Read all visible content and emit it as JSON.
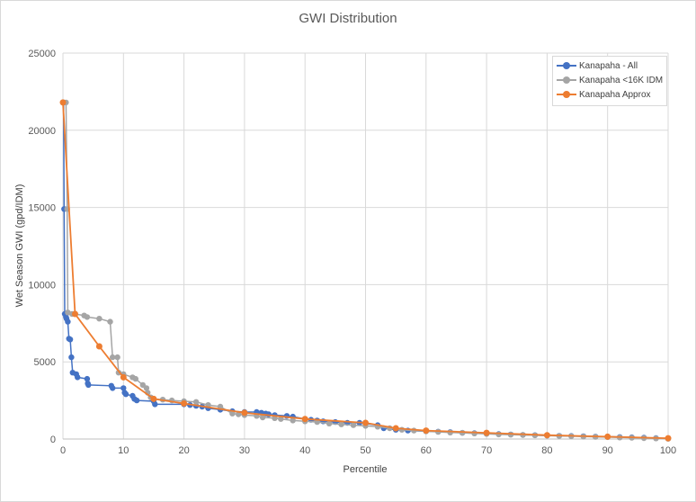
{
  "chart_data": {
    "type": "line",
    "title": "GWI Distribution",
    "xlabel": "Percentile",
    "ylabel": "Wet Season GWI (gpd/IDM)",
    "xlim": [
      0,
      100
    ],
    "ylim": [
      0,
      25000
    ],
    "x_ticks": [
      "0",
      "10",
      "20",
      "30",
      "40",
      "50",
      "60",
      "70",
      "80",
      "90",
      "100"
    ],
    "y_ticks": [
      "0",
      "5000",
      "10000",
      "15000",
      "20000",
      "25000"
    ],
    "grid": "vertical and horizontal",
    "legend_position": "top-right",
    "series": [
      {
        "name": "Kanapaha - All",
        "color": "#4472c4",
        "points": [
          [
            0.1,
            21800
          ],
          [
            0.2,
            14900
          ],
          [
            0.3,
            8100
          ],
          [
            0.5,
            7900
          ],
          [
            0.6,
            7800
          ],
          [
            0.8,
            7600
          ],
          [
            1,
            6500
          ],
          [
            1.2,
            6450
          ],
          [
            1.4,
            5300
          ],
          [
            1.6,
            4300
          ],
          [
            2.2,
            4200
          ],
          [
            2.4,
            4000
          ],
          [
            4,
            3900
          ],
          [
            4.1,
            3600
          ],
          [
            4.2,
            3500
          ],
          [
            8,
            3450
          ],
          [
            8.2,
            3300
          ],
          [
            10,
            3300
          ],
          [
            10.2,
            3000
          ],
          [
            10.4,
            2900
          ],
          [
            11.5,
            2800
          ],
          [
            11.8,
            2600
          ],
          [
            12.2,
            2500
          ],
          [
            15,
            2450
          ],
          [
            15.2,
            2250
          ],
          [
            20,
            2250
          ],
          [
            21,
            2200
          ],
          [
            22,
            2150
          ],
          [
            23,
            2100
          ],
          [
            24,
            2000
          ],
          [
            26,
            1900
          ],
          [
            28,
            1800
          ],
          [
            30,
            1750
          ],
          [
            32,
            1750
          ],
          [
            32.8,
            1700
          ],
          [
            33.5,
            1650
          ],
          [
            34,
            1600
          ],
          [
            35,
            1550
          ],
          [
            37,
            1500
          ],
          [
            38,
            1450
          ],
          [
            40,
            1300
          ],
          [
            41,
            1250
          ],
          [
            42,
            1200
          ],
          [
            43,
            1150
          ],
          [
            45,
            1100
          ],
          [
            47,
            1050
          ],
          [
            49,
            1050
          ],
          [
            50,
            1000
          ],
          [
            52,
            900
          ],
          [
            53,
            700
          ],
          [
            55,
            600
          ],
          [
            57,
            550
          ],
          [
            60,
            500
          ],
          [
            62,
            480
          ],
          [
            64,
            450
          ],
          [
            66,
            400
          ],
          [
            68,
            380
          ],
          [
            70,
            350
          ],
          [
            72,
            320
          ],
          [
            74,
            300
          ],
          [
            76,
            270
          ],
          [
            78,
            250
          ],
          [
            80,
            230
          ],
          [
            82,
            210
          ],
          [
            84,
            200
          ],
          [
            86,
            180
          ],
          [
            88,
            160
          ],
          [
            90,
            150
          ],
          [
            92,
            130
          ],
          [
            94,
            110
          ],
          [
            96,
            90
          ],
          [
            98,
            60
          ],
          [
            100,
            30
          ]
        ]
      },
      {
        "name": "Kanapaha <16K IDM",
        "color": "#a5a5a5",
        "points": [
          [
            0.5,
            21800
          ],
          [
            0.7,
            14900
          ],
          [
            0.8,
            8200
          ],
          [
            1.5,
            8100
          ],
          [
            2,
            8100
          ],
          [
            3.5,
            8000
          ],
          [
            4,
            7900
          ],
          [
            6,
            7800
          ],
          [
            7.8,
            7600
          ],
          [
            8.2,
            5300
          ],
          [
            9,
            5300
          ],
          [
            9.2,
            4300
          ],
          [
            10,
            4200
          ],
          [
            11.5,
            4000
          ],
          [
            12,
            3900
          ],
          [
            13.2,
            3500
          ],
          [
            13.8,
            3300
          ],
          [
            14,
            3000
          ],
          [
            14.5,
            2700
          ],
          [
            15,
            2600
          ],
          [
            16.5,
            2550
          ],
          [
            18,
            2500
          ],
          [
            20,
            2450
          ],
          [
            22,
            2400
          ],
          [
            24,
            2200
          ],
          [
            26,
            2100
          ],
          [
            28,
            1650
          ],
          [
            29,
            1600
          ],
          [
            30,
            1550
          ],
          [
            32,
            1500
          ],
          [
            33,
            1400
          ],
          [
            35,
            1350
          ],
          [
            36,
            1300
          ],
          [
            38,
            1200
          ],
          [
            40,
            1150
          ],
          [
            42,
            1100
          ],
          [
            44,
            1000
          ],
          [
            46,
            950
          ],
          [
            48,
            900
          ],
          [
            50,
            850
          ],
          [
            52,
            800
          ],
          [
            54,
            700
          ],
          [
            56,
            600
          ],
          [
            58,
            550
          ],
          [
            60,
            500
          ],
          [
            62,
            460
          ],
          [
            64,
            420
          ],
          [
            66,
            400
          ],
          [
            68,
            360
          ],
          [
            70,
            330
          ],
          [
            72,
            300
          ],
          [
            74,
            280
          ],
          [
            76,
            260
          ],
          [
            78,
            240
          ],
          [
            80,
            220
          ],
          [
            82,
            200
          ],
          [
            84,
            180
          ],
          [
            86,
            160
          ],
          [
            88,
            140
          ],
          [
            90,
            120
          ],
          [
            92,
            100
          ],
          [
            94,
            80
          ],
          [
            96,
            60
          ],
          [
            98,
            40
          ],
          [
            100,
            20
          ]
        ]
      },
      {
        "name": "Kanapaha Approx",
        "color": "#ed7d31",
        "points": [
          [
            0,
            21800
          ],
          [
            2,
            8100
          ],
          [
            6,
            6000
          ],
          [
            10,
            4000
          ],
          [
            15,
            2600
          ],
          [
            20,
            2300
          ],
          [
            30,
            1700
          ],
          [
            40,
            1300
          ],
          [
            50,
            1050
          ],
          [
            55,
            700
          ],
          [
            60,
            550
          ],
          [
            70,
            400
          ],
          [
            80,
            250
          ],
          [
            90,
            150
          ],
          [
            100,
            50
          ]
        ]
      }
    ]
  }
}
